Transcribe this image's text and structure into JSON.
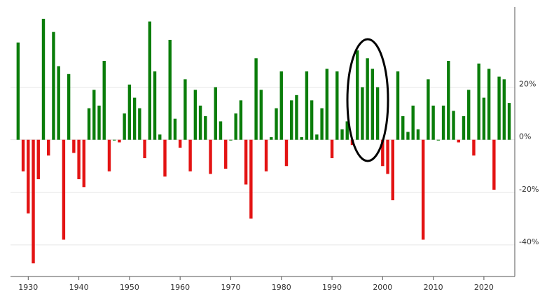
{
  "chart_data": {
    "type": "bar",
    "x": [
      1928,
      1929,
      1930,
      1931,
      1932,
      1933,
      1934,
      1935,
      1936,
      1937,
      1938,
      1939,
      1940,
      1941,
      1942,
      1943,
      1944,
      1945,
      1946,
      1947,
      1948,
      1949,
      1950,
      1951,
      1952,
      1953,
      1954,
      1955,
      1956,
      1957,
      1958,
      1959,
      1960,
      1961,
      1962,
      1963,
      1964,
      1965,
      1966,
      1967,
      1968,
      1969,
      1970,
      1971,
      1972,
      1973,
      1974,
      1975,
      1976,
      1977,
      1978,
      1979,
      1980,
      1981,
      1982,
      1983,
      1984,
      1985,
      1986,
      1987,
      1988,
      1989,
      1990,
      1991,
      1992,
      1993,
      1994,
      1995,
      1996,
      1997,
      1998,
      1999,
      2000,
      2001,
      2002,
      2003,
      2004,
      2005,
      2006,
      2007,
      2008,
      2009,
      2010,
      2011,
      2012,
      2013,
      2014,
      2015,
      2016,
      2017,
      2018,
      2019,
      2020,
      2021,
      2022,
      2023,
      2024,
      2025
    ],
    "values": [
      37,
      -12,
      -28,
      -47,
      -15,
      46,
      -6,
      41,
      28,
      -38,
      25,
      -5,
      -15,
      -18,
      12,
      19,
      13,
      30,
      -12,
      0,
      -1,
      10,
      21,
      16,
      12,
      -7,
      45,
      26,
      2,
      -14,
      38,
      8,
      -3,
      23,
      -12,
      19,
      13,
      9,
      -13,
      20,
      7,
      -11,
      0,
      10,
      15,
      -17,
      -30,
      31,
      19,
      -12,
      1,
      12,
      26,
      -10,
      15,
      17,
      1,
      26,
      15,
      2,
      12,
      27,
      -7,
      26,
      4,
      7,
      -2,
      34,
      20,
      31,
      27,
      20,
      -10,
      -13,
      -23,
      26,
      9,
      3,
      13,
      4,
      -38,
      23,
      13,
      0,
      13,
      30,
      11,
      -1,
      9,
      19,
      -6,
      29,
      16,
      27,
      -19,
      24,
      23,
      14
    ],
    "positive_color": "#0a7d0a",
    "negative_color": "#e31313",
    "xlim": [
      1926.5,
      2026.1
    ],
    "xticks": [
      1930,
      1940,
      1950,
      1960,
      1970,
      1980,
      1990,
      2000,
      2010,
      2020
    ],
    "ylim": [
      -52,
      50.5
    ],
    "yticks": [
      {
        "value": 20,
        "label": "20%"
      },
      {
        "value": 0,
        "label": "0%"
      },
      {
        "value": -20,
        "label": "-20%"
      },
      {
        "value": -40,
        "label": "-40%"
      }
    ],
    "grid": true
  }
}
